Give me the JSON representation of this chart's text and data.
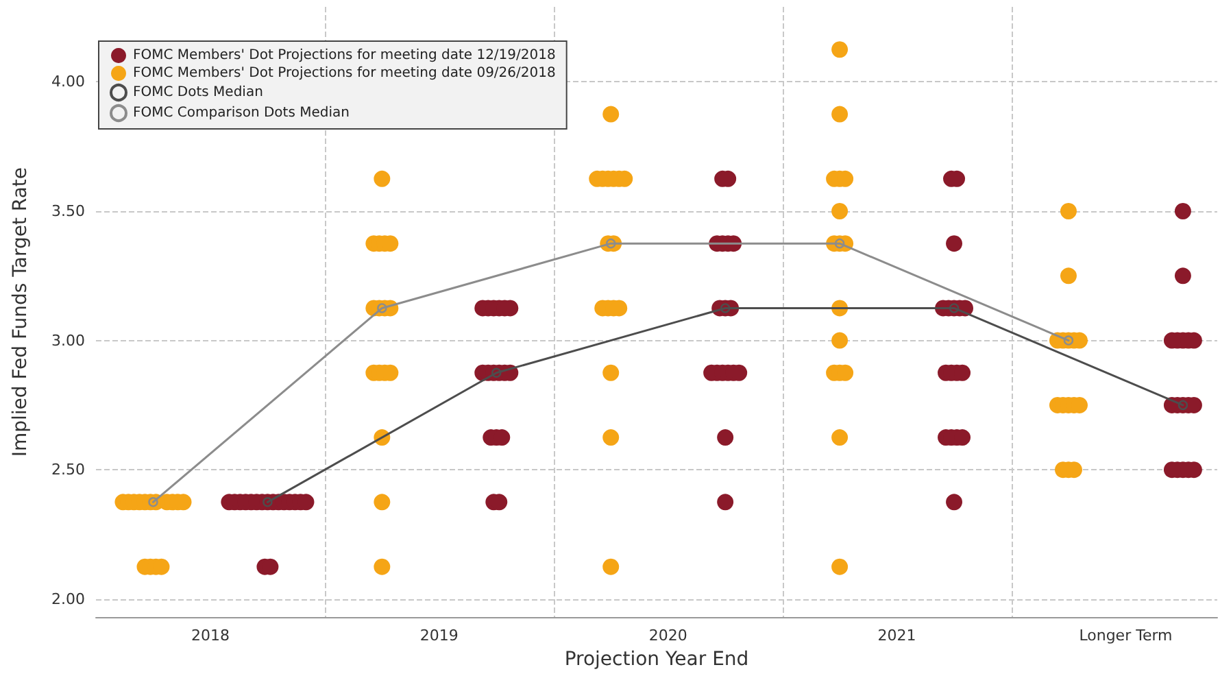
{
  "chart_data": {
    "type": "scatter",
    "xlabel": "Projection Year End",
    "ylabel": "Implied Fed Funds Target Rate",
    "xlim": [
      2017.5,
      2022.4
    ],
    "xticks": [
      2018,
      {
        "value": 2018.5,
        "label": null
      },
      2019,
      {
        "value": 2019.5,
        "label": null
      },
      2020,
      {
        "value": 2020.5,
        "label": null
      },
      2021,
      {
        "value": 2021.5,
        "label": null
      },
      {
        "value": 2022,
        "label": "Longer Term"
      }
    ],
    "ylim": [
      1.93,
      4.29
    ],
    "yticks": [
      {
        "value": 2,
        "label": "2.00"
      },
      {
        "value": 2.5,
        "label": "2.50"
      },
      {
        "value": 3,
        "label": "3.00"
      },
      {
        "value": 3.5,
        "label": "3.50"
      },
      {
        "value": 4,
        "label": "4.00"
      }
    ],
    "grid": true,
    "legend": "top left",
    "marker": "circle",
    "series": [
      {
        "name": "FOMC Members' Dot Projections for meeting date 12/19/2018",
        "color": "#8b1a2a",
        "x": [
          2018.082,
          2018.106,
          2018.13,
          2018.154,
          2018.178,
          2018.202,
          2018.226,
          2018.25,
          2018.274,
          2018.298,
          2018.322,
          2018.346,
          2018.37,
          2018.394,
          2018.418,
          2018.238,
          2018.262,
          2019.19,
          2019.214,
          2019.238,
          2019.262,
          2019.286,
          2019.31,
          2019.19,
          2019.214,
          2019.238,
          2019.262,
          2019.286,
          2019.31,
          2019.226,
          2019.25,
          2019.274,
          2019.238,
          2019.262,
          2020.238,
          2020.262,
          2020.214,
          2020.238,
          2020.262,
          2020.286,
          2020.226,
          2020.25,
          2020.274,
          2020.19,
          2020.214,
          2020.238,
          2020.262,
          2020.286,
          2020.31,
          2020.25,
          2020.25,
          2021.238,
          2021.262,
          2021.25,
          2021.202,
          2021.226,
          2021.25,
          2021.274,
          2021.298,
          2021.214,
          2021.238,
          2021.262,
          2021.286,
          2021.214,
          2021.238,
          2021.262,
          2021.286,
          2021.25,
          2022.25,
          2022.25,
          2022.202,
          2022.226,
          2022.25,
          2022.274,
          2022.298,
          2022.202,
          2022.226,
          2022.25,
          2022.274,
          2022.298,
          2022.202,
          2022.226,
          2022.25,
          2022.274,
          2022.298
        ],
        "values": [
          2.375,
          2.375,
          2.375,
          2.375,
          2.375,
          2.375,
          2.375,
          2.375,
          2.375,
          2.375,
          2.375,
          2.375,
          2.375,
          2.375,
          2.375,
          2.125,
          2.125,
          3.125,
          3.125,
          3.125,
          3.125,
          3.125,
          3.125,
          2.875,
          2.875,
          2.875,
          2.875,
          2.875,
          2.875,
          2.625,
          2.625,
          2.625,
          2.375,
          2.375,
          3.625,
          3.625,
          3.375,
          3.375,
          3.375,
          3.375,
          3.125,
          3.125,
          3.125,
          2.875,
          2.875,
          2.875,
          2.875,
          2.875,
          2.875,
          2.625,
          2.375,
          3.625,
          3.625,
          3.375,
          3.125,
          3.125,
          3.125,
          3.125,
          3.125,
          2.875,
          2.875,
          2.875,
          2.875,
          2.625,
          2.625,
          2.625,
          2.625,
          2.375,
          3.5,
          3.25,
          3.0,
          3.0,
          3.0,
          3.0,
          3.0,
          2.75,
          2.75,
          2.75,
          2.75,
          2.75,
          2.5,
          2.5,
          2.5,
          2.5,
          2.5
        ]
      },
      {
        "name": "FOMC Members' Dot Projections for meeting date 09/26/2018",
        "color": "#f5a516",
        "x": [
          2017.618,
          2017.642,
          2017.666,
          2017.69,
          2017.714,
          2017.738,
          2017.762,
          2017.81,
          2017.834,
          2017.858,
          2017.882,
          2017.714,
          2017.738,
          2017.762,
          2017.786,
          2018.75,
          2018.714,
          2018.738,
          2018.762,
          2018.786,
          2018.714,
          2018.738,
          2018.762,
          2018.786,
          2018.714,
          2018.738,
          2018.762,
          2018.786,
          2018.75,
          2018.75,
          2018.75,
          2019.75,
          2019.69,
          2019.714,
          2019.738,
          2019.762,
          2019.786,
          2019.81,
          2019.738,
          2019.762,
          2019.714,
          2019.738,
          2019.762,
          2019.786,
          2019.75,
          2019.75,
          2019.75,
          2020.75,
          2020.75,
          2020.726,
          2020.75,
          2020.774,
          2020.75,
          2020.726,
          2020.75,
          2020.774,
          2020.75,
          2020.75,
          2020.726,
          2020.75,
          2020.774,
          2020.75,
          2020.75,
          2021.75,
          2021.75,
          2021.702,
          2021.726,
          2021.75,
          2021.774,
          2021.798,
          2021.702,
          2021.726,
          2021.75,
          2021.774,
          2021.798,
          2021.726,
          2021.75,
          2021.774
        ],
        "values": [
          2.375,
          2.375,
          2.375,
          2.375,
          2.375,
          2.375,
          2.375,
          2.375,
          2.375,
          2.375,
          2.375,
          2.125,
          2.125,
          2.125,
          2.125,
          3.625,
          3.375,
          3.375,
          3.375,
          3.375,
          3.125,
          3.125,
          3.125,
          3.125,
          2.875,
          2.875,
          2.875,
          2.875,
          2.625,
          2.375,
          2.125,
          3.875,
          3.625,
          3.625,
          3.625,
          3.625,
          3.625,
          3.625,
          3.375,
          3.375,
          3.125,
          3.125,
          3.125,
          3.125,
          2.875,
          2.625,
          2.125,
          4.125,
          3.875,
          3.625,
          3.625,
          3.625,
          3.5,
          3.375,
          3.375,
          3.375,
          3.125,
          3.0,
          2.875,
          2.875,
          2.875,
          2.625,
          2.125,
          3.5,
          3.25,
          3.0,
          3.0,
          3.0,
          3.0,
          3.0,
          2.75,
          2.75,
          2.75,
          2.75,
          2.75,
          2.5,
          2.5,
          2.5
        ]
      },
      {
        "name": "FOMC Dots Median",
        "type": "line",
        "color": "#4d4d4d",
        "x": [
          2018.25,
          2019.25,
          2020.25,
          2021.25,
          2022.25
        ],
        "values": [
          2.375,
          2.875,
          3.125,
          3.125,
          2.75
        ]
      },
      {
        "name": "FOMC Comparison Dots Median",
        "type": "line",
        "color": "#8c8c8c",
        "x": [
          2017.75,
          2018.75,
          2019.75,
          2020.75,
          2021.75
        ],
        "values": [
          2.375,
          3.125,
          3.375,
          3.375,
          3.0
        ]
      }
    ]
  }
}
